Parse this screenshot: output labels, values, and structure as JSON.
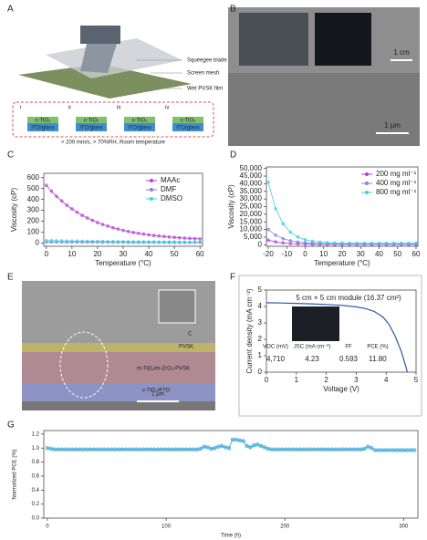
{
  "figure": {
    "panels": [
      "A",
      "B",
      "C",
      "D",
      "E",
      "F",
      "G"
    ]
  },
  "schematic": {
    "labels": [
      "Squeegee blade",
      "Screen mesh",
      "Wet PVSK film"
    ],
    "steps": [
      "i",
      "ii",
      "iii",
      "iv"
    ],
    "layer": [
      "c-TiO₂",
      "ITO/glass"
    ],
    "conditions": "> 200 mm/s, > 70%RH, Room temperature"
  },
  "photo": {
    "scale_top": "1 cm",
    "scale_bottom": "1 μm"
  },
  "cross_section": {
    "layers": [
      "C",
      "PVSK",
      "m-TiO₂/m-ZrO₂-PVSK",
      "c-TiO₂/FTO"
    ],
    "scale": "1 μm"
  },
  "chart_data": [
    {
      "type": "line",
      "marker": "circle",
      "legend": "upper right",
      "xlabel": "Temperature (°C)",
      "ylabel": "Viscosity (cP)",
      "x": [
        0,
        2,
        4,
        6,
        8,
        10,
        12,
        14,
        16,
        18,
        20,
        22,
        24,
        26,
        28,
        30,
        32,
        34,
        36,
        38,
        40,
        42,
        44,
        46,
        48,
        50,
        52,
        54,
        56,
        58,
        60
      ],
      "xlim": [
        -1,
        61
      ],
      "ylim": [
        -30,
        640
      ],
      "xticks": [
        0,
        10,
        20,
        30,
        40,
        50,
        60
      ],
      "yticks": [
        0,
        100,
        200,
        300,
        400,
        500,
        600
      ],
      "series": [
        {
          "name": "MAAc",
          "color": "#b53fd6",
          "values": [
            530,
            476,
            428,
            386,
            347,
            313,
            282,
            254,
            230,
            208,
            188,
            170,
            155,
            140,
            128,
            116,
            106,
            97,
            89,
            82,
            75,
            69,
            64,
            60,
            55,
            52,
            48,
            45,
            43,
            40,
            38
          ]
        },
        {
          "name": "DMF",
          "color": "#8a7fe0",
          "values": [
            9,
            9,
            9,
            8,
            8,
            8,
            8,
            8,
            8,
            7,
            7,
            7,
            7,
            7,
            7,
            7,
            6,
            6,
            6,
            6,
            6,
            6,
            6,
            6,
            5,
            5,
            5,
            5,
            5,
            5,
            5
          ]
        },
        {
          "name": "DMSO",
          "color": "#3fd0e0",
          "values": [
            22,
            21,
            20,
            19,
            18,
            18,
            17,
            16,
            15,
            15,
            14,
            14,
            13,
            13,
            12,
            12,
            11,
            11,
            11,
            10,
            10,
            10,
            9,
            9,
            9,
            9,
            8,
            8,
            8,
            8,
            8
          ]
        }
      ]
    },
    {
      "type": "line",
      "marker": "circle",
      "legend": "upper right",
      "xlabel": "Temperature (°C)",
      "ylabel": "Viscosity (cP)",
      "x": [
        -20,
        -16,
        -12,
        -8,
        -4,
        0,
        4,
        8,
        12,
        16,
        20,
        24,
        28,
        32,
        36,
        40,
        44,
        48,
        52,
        56,
        60
      ],
      "xlim": [
        -21,
        61
      ],
      "ylim": [
        -1000,
        51000
      ],
      "xticks": [
        -20,
        -10,
        0,
        10,
        20,
        30,
        40,
        50,
        60
      ],
      "yticks": [
        0,
        {
          "value": 5000,
          "label": "5,000"
        },
        {
          "value": 10000,
          "label": "10,000"
        },
        {
          "value": 15000,
          "label": "15,000"
        },
        {
          "value": 20000,
          "label": "20,000"
        },
        {
          "value": 25000,
          "label": "25,000"
        },
        {
          "value": 30000,
          "label": "30,000"
        },
        {
          "value": 35000,
          "label": "35,000"
        },
        {
          "value": 40000,
          "label": "40,000"
        },
        {
          "value": 45000,
          "label": "45,000"
        },
        {
          "value": 50000,
          "label": "50,000"
        }
      ],
      "series": [
        {
          "name": "200 mg ml⁻¹",
          "color": "#b53fd6",
          "values": [
            3000,
            1900,
            1230,
            820,
            580,
            430,
            340,
            280,
            250,
            230,
            210,
            200,
            200,
            200,
            200,
            200,
            200,
            200,
            200,
            200,
            200
          ]
        },
        {
          "name": "400 mg ml⁻¹",
          "color": "#8a7fe0",
          "values": [
            10000,
            6270,
            4000,
            2620,
            1780,
            1280,
            970,
            790,
            670,
            600,
            560,
            540,
            520,
            510,
            500,
            500,
            500,
            500,
            500,
            500,
            500
          ]
        },
        {
          "name": "800 mg ml⁻¹",
          "color": "#3fd0e0",
          "values": [
            41000,
            23600,
            13760,
            8200,
            5070,
            3300,
            2300,
            1730,
            1410,
            1230,
            1130,
            1070,
            1040,
            1020,
            1010,
            1000,
            1000,
            1000,
            1000,
            1000,
            1000
          ]
        }
      ]
    },
    {
      "type": "line",
      "xlabel": "Voltage (V)",
      "ylabel": "Current density (mA cm⁻²)",
      "annotation": "5 cm × 5 cm module (16.37 cm²)",
      "x": [
        0,
        0.5,
        1,
        1.5,
        2,
        2.5,
        3,
        3.3,
        3.6,
        3.9,
        4.1,
        4.3,
        4.5,
        4.6,
        4.71
      ],
      "xlim": [
        0,
        5
      ],
      "ylim": [
        0,
        5
      ],
      "xticks": [
        0,
        1,
        2,
        3,
        4,
        5
      ],
      "yticks": [
        0,
        1,
        2,
        3,
        4,
        5
      ],
      "series": [
        {
          "color": "#2a5aa8",
          "values": [
            4.23,
            4.21,
            4.19,
            4.16,
            4.12,
            4.07,
            3.98,
            3.88,
            3.7,
            3.35,
            2.9,
            2.2,
            1.3,
            0.7,
            0
          ]
        }
      ],
      "table": {
        "headers": [
          "VOC (mV)",
          "JSC (mA cm⁻²)",
          "FF",
          "PCE (%)"
        ],
        "values": [
          "4,710",
          "4.23",
          "0.593",
          "11.80"
        ]
      }
    },
    {
      "type": "line",
      "marker": "circle",
      "xlabel": "Time (h)",
      "ylabel": "Normalized PCE (%)",
      "x": [
        0,
        3,
        6,
        9,
        12,
        15,
        18,
        21,
        24,
        27,
        30,
        33,
        36,
        39,
        42,
        45,
        48,
        51,
        54,
        57,
        60,
        63,
        66,
        69,
        72,
        75,
        78,
        81,
        84,
        87,
        90,
        93,
        96,
        99,
        102,
        105,
        108,
        111,
        114,
        117,
        120,
        123,
        126,
        129,
        132,
        135,
        138,
        141,
        144,
        147,
        150,
        153,
        156,
        159,
        162,
        165,
        168,
        171,
        174,
        177,
        180,
        183,
        186,
        189,
        192,
        195,
        198,
        201,
        204,
        207,
        210,
        213,
        216,
        219,
        222,
        225,
        228,
        231,
        234,
        237,
        240,
        243,
        246,
        249,
        252,
        255,
        258,
        261,
        264,
        267,
        270,
        273,
        276,
        279,
        282,
        285,
        288,
        291,
        294,
        297,
        300,
        303,
        306,
        309
      ],
      "xlim": [
        -3,
        312
      ],
      "ylim": [
        0,
        1.25
      ],
      "xticks": [
        0,
        100,
        200,
        300
      ],
      "yticks": [
        {
          "value": 0,
          "label": "0.0"
        },
        0.2,
        0.4,
        0.6,
        0.8,
        {
          "value": 1,
          "label": "1.0"
        },
        1.2
      ],
      "series": [
        {
          "color": "#3aa8d8",
          "values": [
            1,
            0.99,
            0.98,
            0.98,
            0.98,
            0.98,
            0.98,
            0.98,
            0.98,
            0.98,
            0.98,
            0.98,
            0.98,
            0.98,
            0.98,
            0.98,
            0.98,
            0.98,
            0.98,
            0.98,
            0.98,
            0.98,
            0.98,
            0.98,
            0.98,
            0.98,
            0.98,
            0.98,
            0.98,
            0.98,
            0.98,
            0.98,
            0.98,
            0.98,
            0.98,
            0.98,
            0.98,
            0.98,
            0.98,
            0.98,
            0.98,
            0.98,
            0.98,
            0.99,
            1.02,
            1.01,
            0.99,
            1,
            1.02,
            1.03,
            1.01,
            1,
            1.12,
            1.12,
            1.11,
            1.1,
            1.03,
            1.01,
            1.04,
            1.05,
            1.03,
            1.01,
            0.99,
            0.98,
            0.98,
            0.98,
            0.98,
            0.98,
            0.98,
            0.98,
            0.98,
            0.98,
            0.98,
            0.98,
            0.98,
            0.98,
            0.98,
            0.98,
            0.98,
            0.98,
            0.98,
            0.98,
            0.98,
            0.98,
            0.98,
            0.98,
            0.98,
            0.98,
            0.98,
            0.99,
            1.02,
            1,
            0.97,
            0.97,
            0.97,
            0.97,
            0.97,
            0.97,
            0.97,
            0.97,
            0.97,
            0.97,
            0.97,
            0.97
          ]
        }
      ]
    }
  ]
}
